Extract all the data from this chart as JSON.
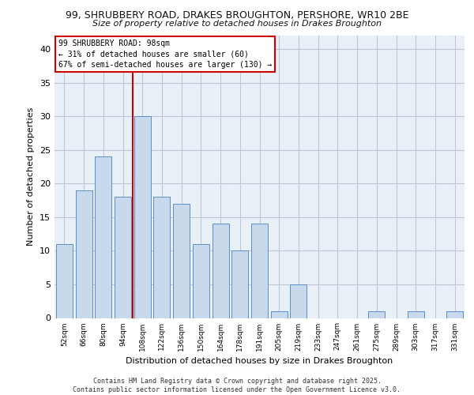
{
  "title1": "99, SHRUBBERY ROAD, DRAKES BROUGHTON, PERSHORE, WR10 2BE",
  "title2": "Size of property relative to detached houses in Drakes Broughton",
  "xlabel": "Distribution of detached houses by size in Drakes Broughton",
  "ylabel": "Number of detached properties",
  "categories": [
    "52sqm",
    "66sqm",
    "80sqm",
    "94sqm",
    "108sqm",
    "122sqm",
    "136sqm",
    "150sqm",
    "164sqm",
    "178sqm",
    "191sqm",
    "205sqm",
    "219sqm",
    "233sqm",
    "247sqm",
    "261sqm",
    "275sqm",
    "289sqm",
    "303sqm",
    "317sqm",
    "331sqm"
  ],
  "values": [
    11,
    19,
    24,
    18,
    30,
    18,
    17,
    11,
    14,
    10,
    14,
    1,
    5,
    0,
    0,
    0,
    1,
    0,
    1,
    0,
    1
  ],
  "bar_color": "#c8d9ec",
  "bar_edge_color": "#5b8fc9",
  "grid_color": "#c0c8d8",
  "bg_color": "#eaf0f8",
  "vline_x": 3.5,
  "vline_color": "#cc0000",
  "annotation_text": "99 SHRUBBERY ROAD: 98sqm\n← 31% of detached houses are smaller (60)\n67% of semi-detached houses are larger (130) →",
  "annotation_box_color": "#cc0000",
  "footer": "Contains HM Land Registry data © Crown copyright and database right 2025.\nContains public sector information licensed under the Open Government Licence v3.0.",
  "ylim": [
    0,
    42
  ],
  "yticks": [
    0,
    5,
    10,
    15,
    20,
    25,
    30,
    35,
    40
  ],
  "fig_width": 6.0,
  "fig_height": 5.0,
  "dpi": 100
}
